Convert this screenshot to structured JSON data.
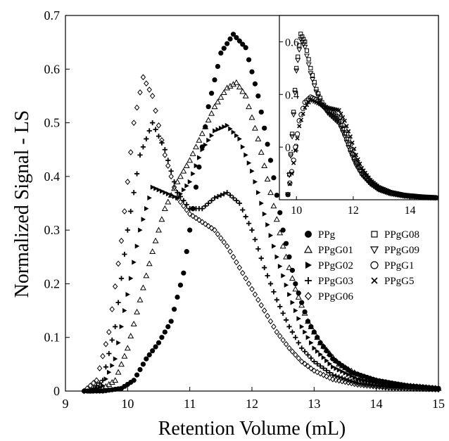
{
  "chart_data": [
    {
      "type": "scatter",
      "title": "",
      "xlabel": "Retention Volume (mL)",
      "ylabel": "Normalized Signal - LS",
      "xlim": [
        9,
        15
      ],
      "ylim": [
        0,
        0.7
      ],
      "x_ticks": [
        "9",
        "10",
        "11",
        "12",
        "13",
        "14",
        "15"
      ],
      "y_ticks": [
        "0",
        "0.1",
        "0.2",
        "0.3",
        "0.4",
        "0.5",
        "0.6",
        "0.7"
      ],
      "grid": false,
      "legend_position": "right",
      "legend": [
        {
          "label": "PPg",
          "marker": "filled-circle"
        },
        {
          "label": "PPgG01",
          "marker": "open-triangle-up"
        },
        {
          "label": "PPgG02",
          "marker": "filled-triangle-right"
        },
        {
          "label": "PPgG03",
          "marker": "plus"
        },
        {
          "label": "PPgG06",
          "marker": "open-diamond"
        },
        {
          "label": "PPgG08",
          "marker": "open-square"
        },
        {
          "label": "PPgG09",
          "marker": "open-triangle-down"
        },
        {
          "label": "PPgG1",
          "marker": "open-circle"
        },
        {
          "label": "PPgG5",
          "marker": "x"
        }
      ],
      "series": [
        {
          "name": "PPg",
          "marker": "filled-circle",
          "points": [
            [
              9.3,
              0
            ],
            [
              9.6,
              0
            ],
            [
              9.9,
              0.005
            ],
            [
              10.1,
              0.02
            ],
            [
              10.3,
              0.06
            ],
            [
              10.5,
              0.09
            ],
            [
              10.7,
              0.13
            ],
            [
              10.9,
              0.22
            ],
            [
              11.1,
              0.38
            ],
            [
              11.3,
              0.53
            ],
            [
              11.5,
              0.63
            ],
            [
              11.7,
              0.665
            ],
            [
              11.9,
              0.64
            ],
            [
              12.1,
              0.55
            ],
            [
              12.3,
              0.43
            ],
            [
              12.5,
              0.3
            ],
            [
              12.7,
              0.2
            ],
            [
              12.9,
              0.13
            ],
            [
              13.1,
              0.09
            ],
            [
              13.3,
              0.06
            ],
            [
              13.6,
              0.035
            ],
            [
              14.0,
              0.02
            ],
            [
              14.5,
              0.01
            ],
            [
              15.0,
              0.005
            ]
          ]
        },
        {
          "name": "PPgG01",
          "marker": "open-triangle-up",
          "points": [
            [
              9.4,
              0
            ],
            [
              9.6,
              0.005
            ],
            [
              9.8,
              0.02
            ],
            [
              10.0,
              0.08
            ],
            [
              10.2,
              0.17
            ],
            [
              10.4,
              0.26
            ],
            [
              10.6,
              0.34
            ],
            [
              10.8,
              0.39
            ],
            [
              11.0,
              0.43
            ],
            [
              11.2,
              0.48
            ],
            [
              11.4,
              0.53
            ],
            [
              11.6,
              0.565
            ],
            [
              11.75,
              0.575
            ],
            [
              11.9,
              0.55
            ],
            [
              12.1,
              0.47
            ],
            [
              12.3,
              0.37
            ],
            [
              12.5,
              0.27
            ],
            [
              12.7,
              0.19
            ],
            [
              12.9,
              0.13
            ],
            [
              13.1,
              0.09
            ],
            [
              13.4,
              0.05
            ],
            [
              13.8,
              0.025
            ],
            [
              14.3,
              0.012
            ],
            [
              15.0,
              0.005
            ]
          ]
        },
        {
          "name": "PPgG02",
          "marker": "filled-triangle-right",
          "points": [
            [
              9.4,
              0
            ],
            [
              9.6,
              0.01
            ],
            [
              9.8,
              0.06
            ],
            [
              10.0,
              0.18
            ],
            [
              10.2,
              0.3
            ],
            [
              10.4,
              0.38
            ],
            [
              10.6,
              0.37
            ],
            [
              10.8,
              0.36
            ],
            [
              11.0,
              0.39
            ],
            [
              11.2,
              0.45
            ],
            [
              11.4,
              0.485
            ],
            [
              11.6,
              0.495
            ],
            [
              11.8,
              0.47
            ],
            [
              12.0,
              0.41
            ],
            [
              12.2,
              0.33
            ],
            [
              12.4,
              0.25
            ],
            [
              12.6,
              0.18
            ],
            [
              12.8,
              0.12
            ],
            [
              13.0,
              0.08
            ],
            [
              13.3,
              0.045
            ],
            [
              13.7,
              0.022
            ],
            [
              14.2,
              0.01
            ],
            [
              15.0,
              0.004
            ]
          ]
        },
        {
          "name": "PPgG03",
          "marker": "plus",
          "points": [
            [
              9.4,
              0
            ],
            [
              9.6,
              0.02
            ],
            [
              9.8,
              0.12
            ],
            [
              10.0,
              0.3
            ],
            [
              10.2,
              0.44
            ],
            [
              10.4,
              0.5
            ],
            [
              10.6,
              0.45
            ],
            [
              10.8,
              0.37
            ],
            [
              11.0,
              0.34
            ],
            [
              11.2,
              0.34
            ],
            [
              11.4,
              0.36
            ],
            [
              11.6,
              0.37
            ],
            [
              11.8,
              0.35
            ],
            [
              12.0,
              0.3
            ],
            [
              12.2,
              0.23
            ],
            [
              12.4,
              0.17
            ],
            [
              12.6,
              0.12
            ],
            [
              12.8,
              0.08
            ],
            [
              13.0,
              0.055
            ],
            [
              13.3,
              0.03
            ],
            [
              13.7,
              0.015
            ],
            [
              14.2,
              0.007
            ],
            [
              15.0,
              0.003
            ]
          ]
        },
        {
          "name": "PPgG06",
          "marker": "open-diamond",
          "points": [
            [
              9.3,
              0
            ],
            [
              9.5,
              0.02
            ],
            [
              9.7,
              0.11
            ],
            [
              9.9,
              0.28
            ],
            [
              10.1,
              0.5
            ],
            [
              10.25,
              0.585
            ],
            [
              10.4,
              0.55
            ],
            [
              10.6,
              0.44
            ],
            [
              10.8,
              0.36
            ],
            [
              11.0,
              0.33
            ],
            [
              11.2,
              0.315
            ],
            [
              11.4,
              0.3
            ],
            [
              11.6,
              0.27
            ],
            [
              11.8,
              0.23
            ],
            [
              12.0,
              0.19
            ],
            [
              12.2,
              0.15
            ],
            [
              12.4,
              0.11
            ],
            [
              12.6,
              0.08
            ],
            [
              12.8,
              0.055
            ],
            [
              13.0,
              0.038
            ],
            [
              13.3,
              0.022
            ],
            [
              13.7,
              0.012
            ],
            [
              14.2,
              0.006
            ],
            [
              15.0,
              0.003
            ]
          ]
        }
      ]
    },
    {
      "type": "scatter",
      "title": "",
      "xlabel": "",
      "ylabel": "",
      "xlim": [
        9.4,
        15
      ],
      "ylim": [
        0,
        0.7
      ],
      "x_ticks": [
        "10",
        "12",
        "14"
      ],
      "y_ticks": [
        "0.2",
        "0.4",
        "0.6"
      ],
      "grid": false,
      "series": [
        {
          "name": "PPgG08",
          "marker": "open-square",
          "points": [
            [
              9.7,
              0.02
            ],
            [
              9.85,
              0.25
            ],
            [
              10.0,
              0.5
            ],
            [
              10.15,
              0.63
            ],
            [
              10.3,
              0.6
            ],
            [
              10.5,
              0.5
            ],
            [
              10.7,
              0.42
            ],
            [
              10.9,
              0.37
            ],
            [
              11.1,
              0.34
            ],
            [
              11.3,
              0.32
            ],
            [
              11.5,
              0.3
            ],
            [
              11.7,
              0.25
            ],
            [
              11.9,
              0.19
            ],
            [
              12.1,
              0.14
            ],
            [
              12.3,
              0.1
            ],
            [
              12.6,
              0.065
            ],
            [
              12.9,
              0.04
            ],
            [
              13.3,
              0.025
            ],
            [
              13.8,
              0.015
            ],
            [
              14.4,
              0.01
            ],
            [
              14.9,
              0.008
            ]
          ]
        },
        {
          "name": "PPgG09",
          "marker": "open-triangle-down",
          "points": [
            [
              9.7,
              0.02
            ],
            [
              9.85,
              0.24
            ],
            [
              10.0,
              0.49
            ],
            [
              10.15,
              0.61
            ],
            [
              10.3,
              0.58
            ],
            [
              10.5,
              0.48
            ],
            [
              10.7,
              0.41
            ],
            [
              10.9,
              0.36
            ],
            [
              11.1,
              0.33
            ],
            [
              11.3,
              0.31
            ],
            [
              11.5,
              0.29
            ],
            [
              11.7,
              0.24
            ],
            [
              11.9,
              0.18
            ],
            [
              12.1,
              0.13
            ],
            [
              12.3,
              0.095
            ],
            [
              12.6,
              0.06
            ],
            [
              12.9,
              0.038
            ],
            [
              13.3,
              0.023
            ],
            [
              13.8,
              0.014
            ],
            [
              14.4,
              0.009
            ],
            [
              14.9,
              0.007
            ]
          ]
        },
        {
          "name": "PPgG1",
          "marker": "open-circle",
          "points": [
            [
              9.7,
              0.02
            ],
            [
              9.9,
              0.15
            ],
            [
              10.1,
              0.3
            ],
            [
              10.3,
              0.37
            ],
            [
              10.5,
              0.39
            ],
            [
              10.7,
              0.38
            ],
            [
              10.9,
              0.36
            ],
            [
              11.1,
              0.34
            ],
            [
              11.3,
              0.33
            ],
            [
              11.5,
              0.31
            ],
            [
              11.7,
              0.27
            ],
            [
              11.9,
              0.21
            ],
            [
              12.1,
              0.15
            ],
            [
              12.3,
              0.11
            ],
            [
              12.6,
              0.07
            ],
            [
              12.9,
              0.045
            ],
            [
              13.3,
              0.028
            ],
            [
              13.8,
              0.017
            ],
            [
              14.4,
              0.011
            ],
            [
              14.9,
              0.008
            ]
          ]
        },
        {
          "name": "PPgG5",
          "marker": "x",
          "points": [
            [
              9.7,
              0.02
            ],
            [
              9.9,
              0.14
            ],
            [
              10.1,
              0.28
            ],
            [
              10.3,
              0.35
            ],
            [
              10.5,
              0.38
            ],
            [
              10.7,
              0.37
            ],
            [
              10.9,
              0.36
            ],
            [
              11.1,
              0.35
            ],
            [
              11.3,
              0.345
            ],
            [
              11.5,
              0.34
            ],
            [
              11.7,
              0.3
            ],
            [
              11.9,
              0.24
            ],
            [
              12.1,
              0.17
            ],
            [
              12.3,
              0.12
            ],
            [
              12.6,
              0.075
            ],
            [
              12.9,
              0.048
            ],
            [
              13.3,
              0.03
            ],
            [
              13.8,
              0.018
            ],
            [
              14.4,
              0.011
            ],
            [
              14.9,
              0.008
            ]
          ]
        }
      ]
    }
  ]
}
